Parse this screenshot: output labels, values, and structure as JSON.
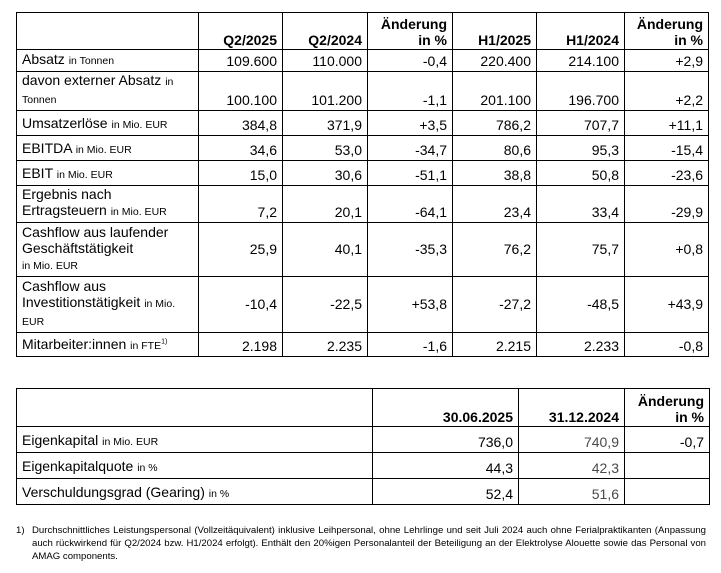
{
  "kpi_table": {
    "headers": [
      "Q2/2025",
      "Q2/2024",
      "Änderung in %",
      "H1/2025",
      "H1/2024",
      "Änderung in %"
    ],
    "rows": [
      {
        "label": "Absatz",
        "unit": "in Tonnen",
        "values": [
          "109.600",
          "110.000",
          "-0,4",
          "220.400",
          "214.100",
          "+2,9"
        ]
      },
      {
        "label": "davon externer Absatz",
        "unit": "in Tonnen",
        "values": [
          "100.100",
          "101.200",
          "-1,1",
          "201.100",
          "196.700",
          "+2,2"
        ]
      },
      {
        "label": "Umsatzerlöse",
        "unit": "in Mio. EUR",
        "values": [
          "384,8",
          "371,9",
          "+3,5",
          "786,2",
          "707,7",
          "+11,1"
        ]
      },
      {
        "label": "EBITDA",
        "unit": "in Mio. EUR",
        "values": [
          "34,6",
          "53,0",
          "-34,7",
          "80,6",
          "95,3",
          "-15,4"
        ]
      },
      {
        "label": "EBIT",
        "unit": "in Mio. EUR",
        "values": [
          "15,0",
          "30,6",
          "-51,1",
          "38,8",
          "50,8",
          "-23,6"
        ]
      },
      {
        "label": "Ergebnis nach Ertragsteuern",
        "unit": "in Mio. EUR",
        "values": [
          "7,2",
          "20,1",
          "-64,1",
          "23,4",
          "33,4",
          "-29,9"
        ]
      },
      {
        "label": "Cashflow aus laufender Geschäftstätigkeit",
        "unit": "in Mio. EUR",
        "values": [
          "25,9",
          "40,1",
          "-35,3",
          "76,2",
          "75,7",
          "+0,8"
        ]
      },
      {
        "label": "Cashflow aus Investitionstätigkeit",
        "unit": "in Mio. EUR",
        "values": [
          "-10,4",
          "-22,5",
          "+53,8",
          "-27,2",
          "-48,5",
          "+43,9"
        ]
      },
      {
        "label": "Mitarbeiter:innen",
        "unit": "in FTE",
        "footnote_ref": "1)",
        "values": [
          "2.198",
          "2.235",
          "-1,6",
          "2.215",
          "2.233",
          "-0,8"
        ]
      }
    ]
  },
  "balance_table": {
    "headers": [
      "30.06.2025",
      "31.12.2024",
      "Änderung in %"
    ],
    "rows": [
      {
        "label": "Eigenkapital",
        "unit": "in Mio. EUR",
        "values": [
          "736,0",
          "740,9",
          "-0,7"
        ]
      },
      {
        "label": "Eigenkapitalquote",
        "unit": "in %",
        "values": [
          "44,3",
          "42,3",
          ""
        ]
      },
      {
        "label": "Verschuldungsgrad (Gearing)",
        "unit": "in %",
        "values": [
          "52,4",
          "51,6",
          ""
        ]
      }
    ]
  },
  "footnote": {
    "mark": "1)",
    "text": "Durchschnittliches Leistungspersonal (Vollzeitäquivalent) inklusive Leihpersonal, ohne Lehrlinge und seit Juli 2024 auch ohne Ferialpraktikanten (Anpassung auch rückwirkend für Q2/2024 bzw. H1/2024 erfolgt). Enthält den 20%igen Personalanteil der Beteiligung an der Elektrolyse Alouette sowie das Personal von AMAG components."
  }
}
